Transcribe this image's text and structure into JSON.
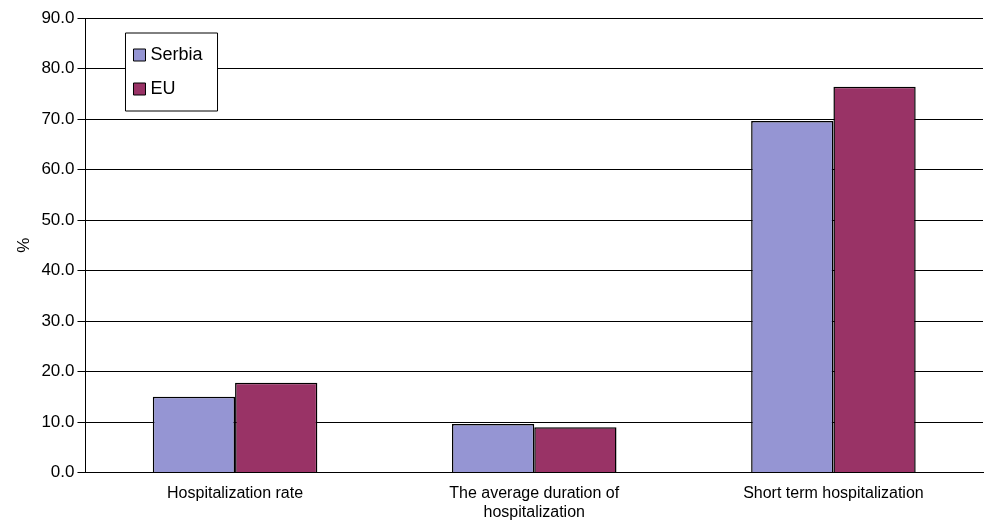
{
  "chart_data": {
    "type": "bar",
    "ylabel": "%",
    "categories": [
      "Hospitalization rate",
      "The average duration of hospitalization",
      "Short term hospitalization"
    ],
    "series": [
      {
        "name": "Serbia",
        "color": "#9595d3",
        "values": [
          15.0,
          9.6,
          69.6
        ]
      },
      {
        "name": "EU",
        "color": "#993366",
        "values": [
          17.8,
          9.0,
          76.4
        ]
      }
    ],
    "ylim": [
      0,
      90
    ],
    "yticks": [
      {
        "value": 0,
        "label": "0.0"
      },
      {
        "value": 10,
        "label": "10.0"
      },
      {
        "value": 20,
        "label": "20.0"
      },
      {
        "value": 30,
        "label": "30.0"
      },
      {
        "value": 40,
        "label": "40.0"
      },
      {
        "value": 50,
        "label": "50.0"
      },
      {
        "value": 60,
        "label": "60.0"
      },
      {
        "value": 70,
        "label": "70.0"
      },
      {
        "value": 80,
        "label": "80.0"
      },
      {
        "value": 90,
        "label": "90.0"
      }
    ],
    "grid": "y",
    "legend": "top left"
  }
}
